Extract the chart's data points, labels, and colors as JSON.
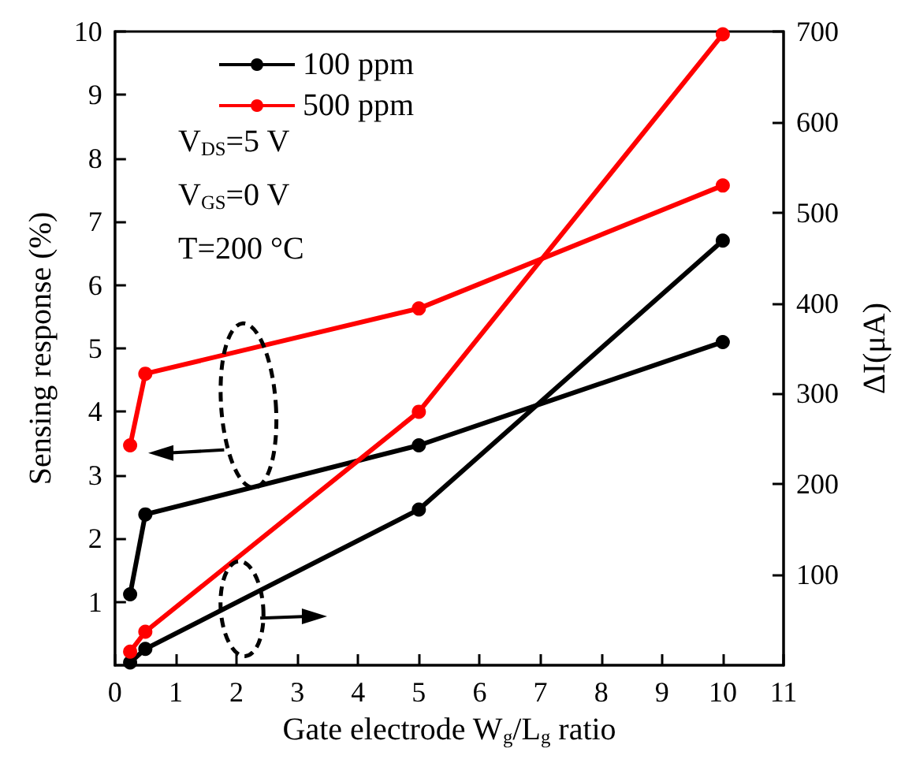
{
  "chart_data": {
    "type": "line",
    "xlabel": "Gate electrode W$_{g}$/L$_{g}$ ratio",
    "ylabel": "Sensing response (%)",
    "y2label": "ΔI(μA)",
    "x": [
      0.25,
      0.5,
      5,
      10
    ],
    "series": [
      {
        "name": "100 ppm",
        "color": "#000000",
        "values": [
          1.12,
          2.38,
          3.47,
          5.1
        ]
      },
      {
        "name": "500 ppm",
        "color": "#ff0000",
        "values": [
          3.47,
          4.6,
          5.63,
          7.57
        ]
      },
      {
        "color": "#000000",
        "axis": "y2",
        "values": [
          3,
          18,
          172,
          469
        ]
      },
      {
        "color": "#ff0000",
        "axis": "y2",
        "values": [
          15,
          37,
          280,
          697
        ]
      }
    ],
    "xlim": [
      0,
      11
    ],
    "xticks": [
      0,
      1,
      2,
      3,
      4,
      5,
      6,
      7,
      8,
      9,
      10,
      11
    ],
    "ylim": [
      0,
      10
    ],
    "yticks": [
      1,
      2,
      3,
      4,
      5,
      6,
      7,
      8,
      9,
      10
    ],
    "y2lim": [
      0,
      700
    ],
    "y2ticks": [
      100,
      200,
      300,
      400,
      500,
      600,
      700
    ],
    "annotations": [
      "V$_{DS}$=5 V",
      "V$_{GS}$=0 V",
      "T=200 °C"
    ],
    "grid": false,
    "legend": "top left",
    "marker": "circle",
    "line_style": "solid"
  }
}
